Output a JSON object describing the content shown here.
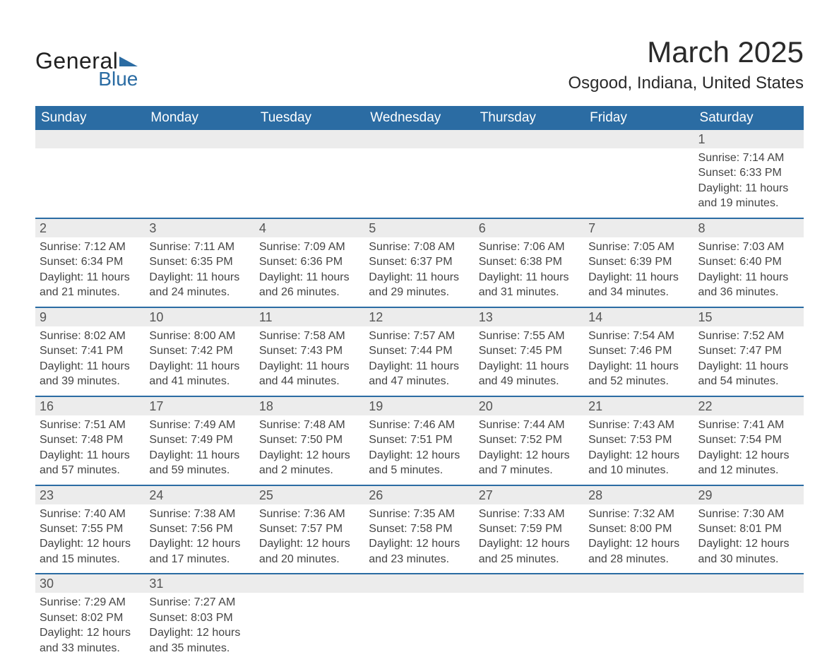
{
  "logo": {
    "text1": "General",
    "text2": "Blue",
    "triangle_color": "#2b6ca3"
  },
  "title": "March 2025",
  "location": "Osgood, Indiana, United States",
  "colors": {
    "header_bg": "#2b6ca3",
    "header_fg": "#ffffff",
    "daynum_bg": "#ececec",
    "row_border": "#2b6ca3",
    "text": "#3a3a3a"
  },
  "headers": [
    "Sunday",
    "Monday",
    "Tuesday",
    "Wednesday",
    "Thursday",
    "Friday",
    "Saturday"
  ],
  "weeks": [
    [
      null,
      null,
      null,
      null,
      null,
      null,
      {
        "n": "1",
        "sr": "Sunrise: 7:14 AM",
        "ss": "Sunset: 6:33 PM",
        "d1": "Daylight: 11 hours",
        "d2": "and 19 minutes."
      }
    ],
    [
      {
        "n": "2",
        "sr": "Sunrise: 7:12 AM",
        "ss": "Sunset: 6:34 PM",
        "d1": "Daylight: 11 hours",
        "d2": "and 21 minutes."
      },
      {
        "n": "3",
        "sr": "Sunrise: 7:11 AM",
        "ss": "Sunset: 6:35 PM",
        "d1": "Daylight: 11 hours",
        "d2": "and 24 minutes."
      },
      {
        "n": "4",
        "sr": "Sunrise: 7:09 AM",
        "ss": "Sunset: 6:36 PM",
        "d1": "Daylight: 11 hours",
        "d2": "and 26 minutes."
      },
      {
        "n": "5",
        "sr": "Sunrise: 7:08 AM",
        "ss": "Sunset: 6:37 PM",
        "d1": "Daylight: 11 hours",
        "d2": "and 29 minutes."
      },
      {
        "n": "6",
        "sr": "Sunrise: 7:06 AM",
        "ss": "Sunset: 6:38 PM",
        "d1": "Daylight: 11 hours",
        "d2": "and 31 minutes."
      },
      {
        "n": "7",
        "sr": "Sunrise: 7:05 AM",
        "ss": "Sunset: 6:39 PM",
        "d1": "Daylight: 11 hours",
        "d2": "and 34 minutes."
      },
      {
        "n": "8",
        "sr": "Sunrise: 7:03 AM",
        "ss": "Sunset: 6:40 PM",
        "d1": "Daylight: 11 hours",
        "d2": "and 36 minutes."
      }
    ],
    [
      {
        "n": "9",
        "sr": "Sunrise: 8:02 AM",
        "ss": "Sunset: 7:41 PM",
        "d1": "Daylight: 11 hours",
        "d2": "and 39 minutes."
      },
      {
        "n": "10",
        "sr": "Sunrise: 8:00 AM",
        "ss": "Sunset: 7:42 PM",
        "d1": "Daylight: 11 hours",
        "d2": "and 41 minutes."
      },
      {
        "n": "11",
        "sr": "Sunrise: 7:58 AM",
        "ss": "Sunset: 7:43 PM",
        "d1": "Daylight: 11 hours",
        "d2": "and 44 minutes."
      },
      {
        "n": "12",
        "sr": "Sunrise: 7:57 AM",
        "ss": "Sunset: 7:44 PM",
        "d1": "Daylight: 11 hours",
        "d2": "and 47 minutes."
      },
      {
        "n": "13",
        "sr": "Sunrise: 7:55 AM",
        "ss": "Sunset: 7:45 PM",
        "d1": "Daylight: 11 hours",
        "d2": "and 49 minutes."
      },
      {
        "n": "14",
        "sr": "Sunrise: 7:54 AM",
        "ss": "Sunset: 7:46 PM",
        "d1": "Daylight: 11 hours",
        "d2": "and 52 minutes."
      },
      {
        "n": "15",
        "sr": "Sunrise: 7:52 AM",
        "ss": "Sunset: 7:47 PM",
        "d1": "Daylight: 11 hours",
        "d2": "and 54 minutes."
      }
    ],
    [
      {
        "n": "16",
        "sr": "Sunrise: 7:51 AM",
        "ss": "Sunset: 7:48 PM",
        "d1": "Daylight: 11 hours",
        "d2": "and 57 minutes."
      },
      {
        "n": "17",
        "sr": "Sunrise: 7:49 AM",
        "ss": "Sunset: 7:49 PM",
        "d1": "Daylight: 11 hours",
        "d2": "and 59 minutes."
      },
      {
        "n": "18",
        "sr": "Sunrise: 7:48 AM",
        "ss": "Sunset: 7:50 PM",
        "d1": "Daylight: 12 hours",
        "d2": "and 2 minutes."
      },
      {
        "n": "19",
        "sr": "Sunrise: 7:46 AM",
        "ss": "Sunset: 7:51 PM",
        "d1": "Daylight: 12 hours",
        "d2": "and 5 minutes."
      },
      {
        "n": "20",
        "sr": "Sunrise: 7:44 AM",
        "ss": "Sunset: 7:52 PM",
        "d1": "Daylight: 12 hours",
        "d2": "and 7 minutes."
      },
      {
        "n": "21",
        "sr": "Sunrise: 7:43 AM",
        "ss": "Sunset: 7:53 PM",
        "d1": "Daylight: 12 hours",
        "d2": "and 10 minutes."
      },
      {
        "n": "22",
        "sr": "Sunrise: 7:41 AM",
        "ss": "Sunset: 7:54 PM",
        "d1": "Daylight: 12 hours",
        "d2": "and 12 minutes."
      }
    ],
    [
      {
        "n": "23",
        "sr": "Sunrise: 7:40 AM",
        "ss": "Sunset: 7:55 PM",
        "d1": "Daylight: 12 hours",
        "d2": "and 15 minutes."
      },
      {
        "n": "24",
        "sr": "Sunrise: 7:38 AM",
        "ss": "Sunset: 7:56 PM",
        "d1": "Daylight: 12 hours",
        "d2": "and 17 minutes."
      },
      {
        "n": "25",
        "sr": "Sunrise: 7:36 AM",
        "ss": "Sunset: 7:57 PM",
        "d1": "Daylight: 12 hours",
        "d2": "and 20 minutes."
      },
      {
        "n": "26",
        "sr": "Sunrise: 7:35 AM",
        "ss": "Sunset: 7:58 PM",
        "d1": "Daylight: 12 hours",
        "d2": "and 23 minutes."
      },
      {
        "n": "27",
        "sr": "Sunrise: 7:33 AM",
        "ss": "Sunset: 7:59 PM",
        "d1": "Daylight: 12 hours",
        "d2": "and 25 minutes."
      },
      {
        "n": "28",
        "sr": "Sunrise: 7:32 AM",
        "ss": "Sunset: 8:00 PM",
        "d1": "Daylight: 12 hours",
        "d2": "and 28 minutes."
      },
      {
        "n": "29",
        "sr": "Sunrise: 7:30 AM",
        "ss": "Sunset: 8:01 PM",
        "d1": "Daylight: 12 hours",
        "d2": "and 30 minutes."
      }
    ],
    [
      {
        "n": "30",
        "sr": "Sunrise: 7:29 AM",
        "ss": "Sunset: 8:02 PM",
        "d1": "Daylight: 12 hours",
        "d2": "and 33 minutes."
      },
      {
        "n": "31",
        "sr": "Sunrise: 7:27 AM",
        "ss": "Sunset: 8:03 PM",
        "d1": "Daylight: 12 hours",
        "d2": "and 35 minutes."
      },
      null,
      null,
      null,
      null,
      null
    ]
  ]
}
